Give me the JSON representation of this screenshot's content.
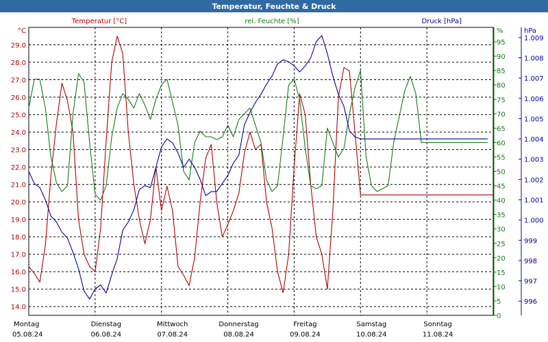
{
  "title": "Temperatur, Feuchte & Druck",
  "colors": {
    "title_bar": "#2f6aa2",
    "title_text": "#ffffff",
    "temperature": "#b00000",
    "humidity": "#137a13",
    "pressure": "#0000a0",
    "grid": "#000000",
    "background": "#ffffff"
  },
  "chart_data": {
    "type": "line",
    "title": "Temperatur, Feuchte & Druck",
    "grid": true,
    "x": {
      "start": "05.08.24 00:00",
      "end": "11.08.24 24:00",
      "day_labels": [
        {
          "weekday": "Montag",
          "date": "05.08.24"
        },
        {
          "weekday": "Dienstag",
          "date": "06.08.24"
        },
        {
          "weekday": "Mittwoch",
          "date": "07.08.24"
        },
        {
          "weekday": "Donnerstag",
          "date": "08.08.24"
        },
        {
          "weekday": "Freitag",
          "date": "09.08.24"
        },
        {
          "weekday": "Samstag",
          "date": "10.08.24"
        },
        {
          "weekday": "Sonntag",
          "date": "11.08.24"
        }
      ]
    },
    "axes": {
      "temperature": {
        "label": "Temperatur [°C]",
        "unit_label": "°C",
        "ylim": [
          13.5,
          30.0
        ],
        "ticks": [
          "14.0",
          "15.0",
          "16.0",
          "17.0",
          "18.0",
          "19.0",
          "20.0",
          "21.0",
          "22.0",
          "23.0",
          "24.0",
          "25.0",
          "26.0",
          "27.0",
          "28.0",
          "29.0"
        ]
      },
      "humidity": {
        "label": "rel. Feuchte [%]",
        "unit_label": "%",
        "ylim": [
          0,
          100
        ],
        "ticks": [
          "0",
          "5",
          "10",
          "15",
          "20",
          "25",
          "30",
          "35",
          "40",
          "45",
          "50",
          "55",
          "60",
          "65",
          "70",
          "75",
          "80",
          "85",
          "90",
          "95"
        ]
      },
      "pressure": {
        "label": "Druck [hPa]",
        "unit_label": "hPa",
        "ylim": [
          995.3,
          1009.5
        ],
        "ticks": [
          "996",
          "997",
          "998",
          "999",
          "1.000",
          "1.001",
          "1.002",
          "1.003",
          "1.004",
          "1.005",
          "1.006",
          "1.007",
          "1.008",
          "1.009"
        ]
      }
    },
    "series": [
      {
        "name": "Temperatur [°C]",
        "axis": "temperature",
        "x_hours": [
          0,
          2,
          4,
          6,
          8,
          10,
          12,
          14,
          16,
          18,
          20,
          22,
          24,
          26,
          28,
          30,
          32,
          34,
          36,
          38,
          40,
          42,
          44,
          46,
          48,
          50,
          52,
          54,
          56,
          58,
          60,
          62,
          64,
          66,
          68,
          70,
          72,
          74,
          76,
          78,
          80,
          82,
          84,
          86,
          88,
          90,
          92,
          94,
          96,
          98,
          100,
          102,
          104,
          106,
          108,
          110,
          112,
          114,
          116,
          118,
          120,
          122,
          124,
          126,
          128,
          130,
          132,
          134,
          136,
          138,
          140,
          142,
          144,
          146,
          148,
          150,
          152,
          154,
          156,
          158,
          160,
          162,
          164,
          166,
          168
        ],
        "values": [
          16.3,
          15.9,
          15.4,
          17.5,
          21.5,
          24.5,
          26.8,
          25.8,
          24.0,
          19.0,
          17.0,
          16.3,
          16.0,
          18.5,
          23.5,
          28.0,
          29.5,
          28.5,
          24.0,
          21.0,
          19.0,
          17.6,
          19.0,
          22.0,
          19.5,
          20.9,
          19.5,
          16.3,
          15.8,
          15.2,
          16.8,
          20.0,
          22.5,
          23.3,
          20.0,
          18.0,
          18.7,
          19.5,
          20.5,
          22.8,
          24.0,
          23.0,
          23.3,
          20.0,
          18.5,
          16.0,
          14.8,
          17.0,
          22.0,
          26.2,
          25.0,
          21.0,
          18.0,
          17.0,
          15.0,
          19.5,
          26.0,
          27.7,
          27.5,
          24.0,
          20.4,
          20.4,
          20.4,
          20.4,
          20.4,
          20.4,
          20.4,
          20.4,
          20.4,
          20.4,
          20.4,
          20.4,
          20.4,
          20.4,
          20.4,
          20.4,
          20.4,
          20.4,
          20.4,
          20.4,
          20.4,
          20.4,
          20.4,
          20.4,
          20.4
        ]
      },
      {
        "name": "rel. Feuchte [%]",
        "axis": "humidity",
        "x_hours": [
          0,
          2,
          4,
          6,
          8,
          10,
          12,
          14,
          16,
          18,
          20,
          22,
          24,
          26,
          28,
          30,
          32,
          34,
          36,
          38,
          40,
          42,
          44,
          46,
          48,
          50,
          52,
          54,
          56,
          58,
          60,
          62,
          64,
          66,
          68,
          70,
          72,
          74,
          76,
          78,
          80,
          82,
          84,
          86,
          88,
          90,
          92,
          94,
          96,
          98,
          100,
          102,
          104,
          106,
          108,
          110,
          112,
          114,
          116,
          118,
          120,
          122,
          124,
          126,
          128,
          130,
          132,
          134,
          136,
          138,
          140,
          142,
          144,
          146,
          148,
          150,
          152,
          154,
          156,
          158,
          160,
          162,
          164,
          166
        ],
        "values": [
          72,
          82,
          82,
          72,
          55,
          46,
          43,
          45,
          70,
          84,
          81,
          60,
          42,
          40,
          45,
          62,
          72,
          77,
          75,
          72,
          77,
          73,
          68,
          75,
          80,
          82,
          74,
          66,
          50,
          47,
          60,
          64,
          62,
          62,
          61,
          62,
          66,
          62,
          68,
          70,
          72,
          66,
          60,
          47,
          43,
          45,
          62,
          80,
          82,
          75,
          58,
          45,
          44,
          45,
          65,
          60,
          55,
          58,
          70,
          79,
          85,
          55,
          45,
          43,
          44,
          45,
          60,
          69,
          78,
          83,
          77,
          60,
          60,
          60,
          60,
          60,
          60,
          60,
          60,
          60,
          60,
          60,
          60,
          60
        ]
      },
      {
        "name": "Druck [hPa]",
        "axis": "pressure",
        "x_hours": [
          0,
          2,
          4,
          6,
          8,
          10,
          12,
          14,
          16,
          18,
          20,
          22,
          24,
          26,
          28,
          30,
          32,
          34,
          36,
          38,
          40,
          42,
          44,
          46,
          48,
          50,
          52,
          54,
          56,
          58,
          60,
          62,
          64,
          66,
          68,
          70,
          72,
          74,
          76,
          78,
          80,
          82,
          84,
          86,
          88,
          90,
          92,
          94,
          96,
          98,
          100,
          102,
          104,
          106,
          108,
          110,
          112,
          114,
          116,
          118,
          120,
          122,
          124,
          126,
          128,
          130,
          132,
          134,
          136,
          138,
          140,
          142,
          144,
          146,
          148,
          150,
          152,
          154,
          156,
          158,
          160,
          162,
          164,
          166
        ],
        "values": [
          1002.4,
          1001.8,
          1001.6,
          1001.0,
          1000.2,
          999.9,
          999.4,
          999.1,
          998.4,
          997.6,
          996.5,
          996.1,
          996.6,
          996.8,
          996.4,
          997.3,
          998.1,
          999.5,
          999.9,
          1000.5,
          1001.5,
          1001.7,
          1001.6,
          1002.6,
          1003.6,
          1004.0,
          1003.8,
          1003.3,
          1002.6,
          1003.0,
          1002.6,
          1002.0,
          1001.2,
          1001.4,
          1001.4,
          1001.8,
          1002.2,
          1002.8,
          1003.2,
          1004.7,
          1005.3,
          1005.8,
          1006.2,
          1006.7,
          1007.1,
          1007.7,
          1007.9,
          1007.8,
          1007.6,
          1007.3,
          1007.6,
          1008.0,
          1008.8,
          1009.1,
          1008.2,
          1007.1,
          1006.2,
          1005.6,
          1004.4,
          1004.1,
          1004.0,
          1004.0,
          1004.0,
          1004.0,
          1004.0,
          1004.0,
          1004.0,
          1004.0,
          1004.0,
          1004.0,
          1004.0,
          1004.0,
          1004.0,
          1004.0,
          1004.0,
          1004.0,
          1004.0,
          1004.0,
          1004.0,
          1004.0,
          1004.0,
          1004.0,
          1004.0,
          1004.0
        ]
      }
    ]
  }
}
